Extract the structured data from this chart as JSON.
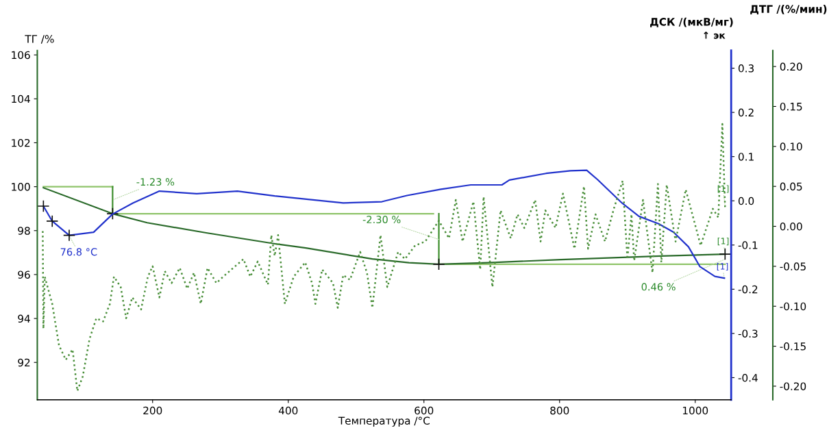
{
  "chart_data": {
    "type": "line",
    "xlabel": "Температура /°C",
    "ylabel": "ТГ /%",
    "y2label": "ДСК /(мкВ/мг)",
    "y3label": "ДТГ /(%/мин)",
    "xlim": [
      30,
      1053
    ],
    "xticks": [
      200,
      400,
      600,
      800,
      1000
    ],
    "ylim": [
      90.3,
      106.2
    ],
    "yticks": [
      92,
      94,
      96,
      98,
      100,
      102,
      104,
      106
    ],
    "y2lim": [
      -0.45,
      0.34
    ],
    "y2ticks": [
      {
        "value": -0.4,
        "label": "-0.4"
      },
      {
        "value": -0.3,
        "label": "-0.3"
      },
      {
        "value": -0.2,
        "label": "-0.2"
      },
      {
        "value": -0.1,
        "label": "-0.1"
      },
      {
        "value": 0,
        "label": "0.0"
      },
      {
        "value": 0.1,
        "label": "0.1"
      },
      {
        "value": 0.2,
        "label": "0.2"
      },
      {
        "value": 0.3,
        "label": "0.3"
      }
    ],
    "y3lim": [
      -0.217,
      0.22
    ],
    "y3ticks": [
      {
        "value": -0.2,
        "label": "-0.20"
      },
      {
        "value": -0.15,
        "label": "-0.15"
      },
      {
        "value": -0.1,
        "label": "-0.10"
      },
      {
        "value": -0.05,
        "label": "-0.05"
      },
      {
        "value": 0,
        "label": "0.00"
      },
      {
        "value": 0.05,
        "label": "0.05"
      },
      {
        "value": 0.1,
        "label": "0.10"
      },
      {
        "value": 0.15,
        "label": "0.15"
      },
      {
        "value": 0.2,
        "label": "0.20"
      }
    ],
    "grid": false,
    "legend": false,
    "series": [
      {
        "type": "line",
        "axis": "y3",
        "color": "#4a8f3a",
        "line_style": "dotted",
        "marker": "none",
        "x": [
          38,
          39,
          41,
          52,
          62,
          72,
          82,
          89,
          97,
          107,
          117,
          127,
          137,
          143,
          153,
          161,
          170,
          183,
          193,
          200,
          210,
          218,
          228,
          240,
          251,
          261,
          271,
          281,
          294,
          304,
          334,
          344,
          355,
          370,
          375,
          380,
          385,
          395,
          408,
          425,
          435,
          440,
          450,
          466,
          473,
          481,
          491,
          506,
          516,
          524,
          536,
          546,
          562,
          572,
          587,
          602,
          622,
          637,
          647,
          657,
          673,
          683,
          688,
          698,
          701,
          713,
          728,
          738,
          748,
          764,
          772,
          779,
          794,
          805,
          822,
          836,
          842,
          853,
          867,
          880,
          893,
          900,
          906,
          910,
          923,
          937,
          945,
          950,
          958,
          971,
          986,
          1008,
          1026,
          1034,
          1040,
          1044
        ],
        "values": [
          -0.006,
          -0.128,
          -0.063,
          -0.097,
          -0.149,
          -0.167,
          -0.154,
          -0.206,
          -0.188,
          -0.141,
          -0.115,
          -0.119,
          -0.097,
          -0.063,
          -0.076,
          -0.115,
          -0.089,
          -0.104,
          -0.063,
          -0.05,
          -0.089,
          -0.056,
          -0.071,
          -0.052,
          -0.078,
          -0.058,
          -0.097,
          -0.052,
          -0.071,
          -0.063,
          -0.041,
          -0.063,
          -0.044,
          -0.073,
          -0.011,
          -0.037,
          -0.011,
          -0.097,
          -0.063,
          -0.045,
          -0.071,
          -0.097,
          -0.054,
          -0.071,
          -0.102,
          -0.061,
          -0.067,
          -0.032,
          -0.058,
          -0.102,
          -0.011,
          -0.076,
          -0.032,
          -0.041,
          -0.024,
          -0.019,
          0.007,
          -0.015,
          0.033,
          -0.019,
          0.031,
          -0.054,
          0.037,
          -0.05,
          -0.076,
          0.02,
          -0.015,
          0.015,
          -0.002,
          0.033,
          -0.019,
          0.02,
          -0.002,
          0.041,
          -0.028,
          0.05,
          -0.028,
          0.015,
          -0.019,
          0.022,
          0.057,
          -0.041,
          0.015,
          -0.043,
          0.033,
          -0.058,
          0.053,
          -0.045,
          0.052,
          -0.019,
          0.046,
          -0.024,
          0.022,
          0.011,
          0.128,
          0.024
        ]
      },
      {
        "type": "line",
        "axis": "y",
        "color": "#8fc46a",
        "line_style": "solid",
        "marker": "none",
        "x": [
          39,
          141
        ],
        "values": [
          100,
          100
        ]
      },
      {
        "type": "line",
        "axis": "y",
        "color": "#8fc46a",
        "line_style": "solid",
        "marker": "none",
        "x": [
          141,
          614
        ],
        "values": [
          98.77,
          98.77
        ]
      },
      {
        "type": "line",
        "axis": "y",
        "color": "#8fc46a",
        "line_style": "solid",
        "marker": "none",
        "x": [
          622,
          1044
        ],
        "values": [
          96.47,
          96.47
        ]
      },
      {
        "type": "line",
        "axis": "y",
        "color": "#3f8f2f",
        "line_style": "solid",
        "marker": "none",
        "x": [
          141,
          141
        ],
        "values": [
          100,
          98.77
        ]
      },
      {
        "type": "line",
        "axis": "y",
        "color": "#3f8f2f",
        "line_style": "solid",
        "marker": "none",
        "x": [
          622,
          622
        ],
        "values": [
          98.77,
          96.47
        ]
      },
      {
        "type": "line",
        "axis": "y",
        "color": "#2a6a2a",
        "line_style": "solid",
        "marker": "none",
        "x": [
          39,
          141,
          192,
          279,
          387,
          426,
          524,
          578,
          622,
          694,
          802,
          949,
          1044
        ],
        "values": [
          99.95,
          98.77,
          98.36,
          97.9,
          97.37,
          97.21,
          96.71,
          96.54,
          96.47,
          96.54,
          96.68,
          96.84,
          96.93
        ]
      },
      {
        "type": "line",
        "axis": "y2",
        "color": "#2233cc",
        "line_style": "solid",
        "marker": "none",
        "x": [
          39,
          52,
          77,
          113,
          141,
          171,
          210,
          265,
          325,
          380,
          481,
          538,
          575,
          625,
          669,
          715,
          726,
          780,
          816,
          840,
          856,
          892,
          917,
          946,
          968,
          990,
          1007,
          1029,
          1043
        ],
        "values": [
          -0.012,
          -0.046,
          -0.078,
          -0.071,
          -0.03,
          -0.005,
          0.022,
          0.016,
          0.022,
          0.011,
          -0.005,
          -0.002,
          0.012,
          0.026,
          0.036,
          0.036,
          0.047,
          0.062,
          0.068,
          0.069,
          0.048,
          -0.005,
          -0.035,
          -0.052,
          -0.071,
          -0.104,
          -0.149,
          -0.171,
          -0.175
        ]
      },
      {
        "type": "scatter",
        "axis": "y2",
        "color": "#111111",
        "marker": "cross",
        "x": [
          39,
          52,
          77
        ],
        "values": [
          -0.012,
          -0.046,
          -0.078
        ]
      },
      {
        "type": "scatter",
        "axis": "y",
        "color": "#111111",
        "marker": "cross",
        "x": [
          141,
          622,
          1044
        ],
        "values": [
          98.77,
          96.47,
          96.93
        ]
      }
    ],
    "annotations": [
      {
        "text": "-1.23 %",
        "x": 141,
        "y": 99.4
      },
      {
        "text": "76.8 °C",
        "x": 77,
        "y": 97.77
      },
      {
        "text": "-2.30 %",
        "x": 622,
        "y": 97.6
      },
      {
        "text": "0.46 %",
        "x": 1044,
        "y": 96.7
      },
      {
        "text": "[1]",
        "x": 1044,
        "y": 99.1
      },
      {
        "text": "[1]",
        "x": 1044,
        "y": 96.93
      },
      {
        "text": "[1]",
        "x": 1043,
        "y": 95.82
      },
      "↑ эк"
    ]
  }
}
